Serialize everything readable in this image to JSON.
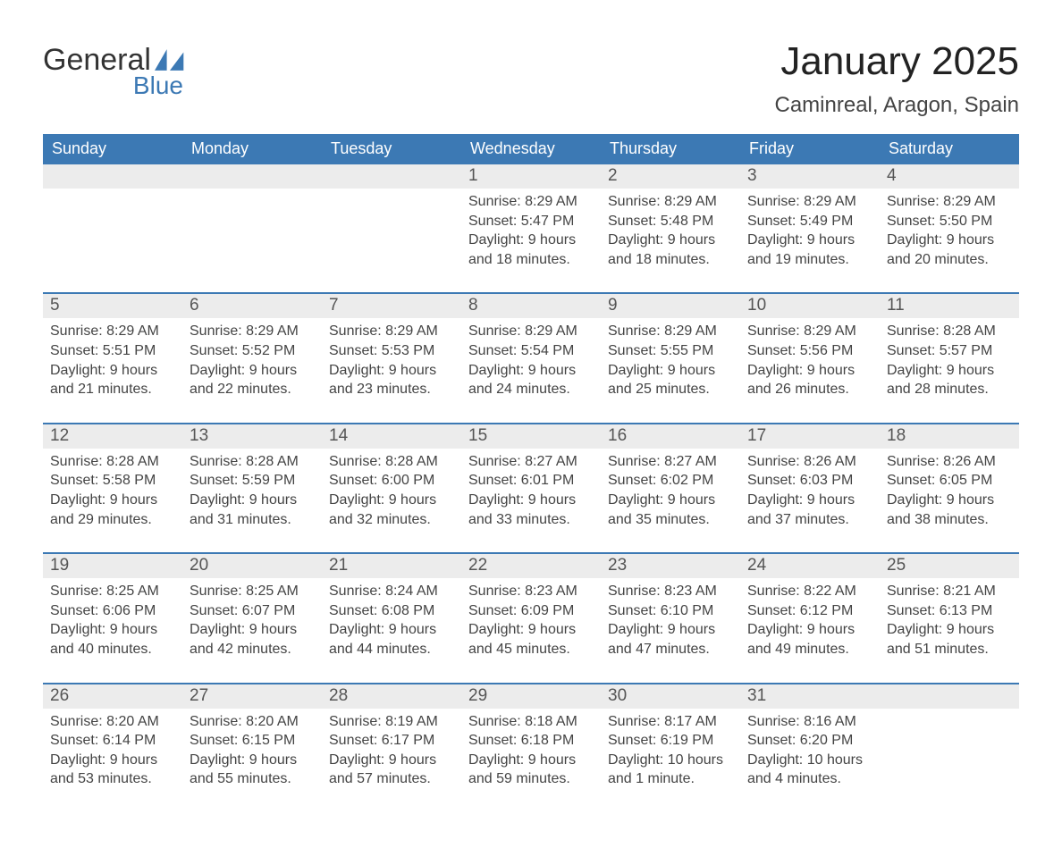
{
  "theme": {
    "accent": "#3c79b4",
    "row_bg": "#ececec",
    "row_border": "#3c79b4",
    "text": "#333333",
    "page_bg": "#ffffff",
    "header_text_color": "#ffffff"
  },
  "logo": {
    "word1": "General",
    "word2": "Blue"
  },
  "title": {
    "month": "January 2025",
    "location": "Caminreal, Aragon, Spain"
  },
  "days_of_week": [
    "Sunday",
    "Monday",
    "Tuesday",
    "Wednesday",
    "Thursday",
    "Friday",
    "Saturday"
  ],
  "weeks": [
    {
      "dates": [
        "",
        "",
        "",
        "1",
        "2",
        "3",
        "4"
      ],
      "days": [
        null,
        null,
        null,
        {
          "sunrise": "Sunrise: 8:29 AM",
          "sunset": "Sunset: 5:47 PM",
          "daylight1": "Daylight: 9 hours",
          "daylight2": "and 18 minutes."
        },
        {
          "sunrise": "Sunrise: 8:29 AM",
          "sunset": "Sunset: 5:48 PM",
          "daylight1": "Daylight: 9 hours",
          "daylight2": "and 18 minutes."
        },
        {
          "sunrise": "Sunrise: 8:29 AM",
          "sunset": "Sunset: 5:49 PM",
          "daylight1": "Daylight: 9 hours",
          "daylight2": "and 19 minutes."
        },
        {
          "sunrise": "Sunrise: 8:29 AM",
          "sunset": "Sunset: 5:50 PM",
          "daylight1": "Daylight: 9 hours",
          "daylight2": "and 20 minutes."
        }
      ]
    },
    {
      "dates": [
        "5",
        "6",
        "7",
        "8",
        "9",
        "10",
        "11"
      ],
      "days": [
        {
          "sunrise": "Sunrise: 8:29 AM",
          "sunset": "Sunset: 5:51 PM",
          "daylight1": "Daylight: 9 hours",
          "daylight2": "and 21 minutes."
        },
        {
          "sunrise": "Sunrise: 8:29 AM",
          "sunset": "Sunset: 5:52 PM",
          "daylight1": "Daylight: 9 hours",
          "daylight2": "and 22 minutes."
        },
        {
          "sunrise": "Sunrise: 8:29 AM",
          "sunset": "Sunset: 5:53 PM",
          "daylight1": "Daylight: 9 hours",
          "daylight2": "and 23 minutes."
        },
        {
          "sunrise": "Sunrise: 8:29 AM",
          "sunset": "Sunset: 5:54 PM",
          "daylight1": "Daylight: 9 hours",
          "daylight2": "and 24 minutes."
        },
        {
          "sunrise": "Sunrise: 8:29 AM",
          "sunset": "Sunset: 5:55 PM",
          "daylight1": "Daylight: 9 hours",
          "daylight2": "and 25 minutes."
        },
        {
          "sunrise": "Sunrise: 8:29 AM",
          "sunset": "Sunset: 5:56 PM",
          "daylight1": "Daylight: 9 hours",
          "daylight2": "and 26 minutes."
        },
        {
          "sunrise": "Sunrise: 8:28 AM",
          "sunset": "Sunset: 5:57 PM",
          "daylight1": "Daylight: 9 hours",
          "daylight2": "and 28 minutes."
        }
      ]
    },
    {
      "dates": [
        "12",
        "13",
        "14",
        "15",
        "16",
        "17",
        "18"
      ],
      "days": [
        {
          "sunrise": "Sunrise: 8:28 AM",
          "sunset": "Sunset: 5:58 PM",
          "daylight1": "Daylight: 9 hours",
          "daylight2": "and 29 minutes."
        },
        {
          "sunrise": "Sunrise: 8:28 AM",
          "sunset": "Sunset: 5:59 PM",
          "daylight1": "Daylight: 9 hours",
          "daylight2": "and 31 minutes."
        },
        {
          "sunrise": "Sunrise: 8:28 AM",
          "sunset": "Sunset: 6:00 PM",
          "daylight1": "Daylight: 9 hours",
          "daylight2": "and 32 minutes."
        },
        {
          "sunrise": "Sunrise: 8:27 AM",
          "sunset": "Sunset: 6:01 PM",
          "daylight1": "Daylight: 9 hours",
          "daylight2": "and 33 minutes."
        },
        {
          "sunrise": "Sunrise: 8:27 AM",
          "sunset": "Sunset: 6:02 PM",
          "daylight1": "Daylight: 9 hours",
          "daylight2": "and 35 minutes."
        },
        {
          "sunrise": "Sunrise: 8:26 AM",
          "sunset": "Sunset: 6:03 PM",
          "daylight1": "Daylight: 9 hours",
          "daylight2": "and 37 minutes."
        },
        {
          "sunrise": "Sunrise: 8:26 AM",
          "sunset": "Sunset: 6:05 PM",
          "daylight1": "Daylight: 9 hours",
          "daylight2": "and 38 minutes."
        }
      ]
    },
    {
      "dates": [
        "19",
        "20",
        "21",
        "22",
        "23",
        "24",
        "25"
      ],
      "days": [
        {
          "sunrise": "Sunrise: 8:25 AM",
          "sunset": "Sunset: 6:06 PM",
          "daylight1": "Daylight: 9 hours",
          "daylight2": "and 40 minutes."
        },
        {
          "sunrise": "Sunrise: 8:25 AM",
          "sunset": "Sunset: 6:07 PM",
          "daylight1": "Daylight: 9 hours",
          "daylight2": "and 42 minutes."
        },
        {
          "sunrise": "Sunrise: 8:24 AM",
          "sunset": "Sunset: 6:08 PM",
          "daylight1": "Daylight: 9 hours",
          "daylight2": "and 44 minutes."
        },
        {
          "sunrise": "Sunrise: 8:23 AM",
          "sunset": "Sunset: 6:09 PM",
          "daylight1": "Daylight: 9 hours",
          "daylight2": "and 45 minutes."
        },
        {
          "sunrise": "Sunrise: 8:23 AM",
          "sunset": "Sunset: 6:10 PM",
          "daylight1": "Daylight: 9 hours",
          "daylight2": "and 47 minutes."
        },
        {
          "sunrise": "Sunrise: 8:22 AM",
          "sunset": "Sunset: 6:12 PM",
          "daylight1": "Daylight: 9 hours",
          "daylight2": "and 49 minutes."
        },
        {
          "sunrise": "Sunrise: 8:21 AM",
          "sunset": "Sunset: 6:13 PM",
          "daylight1": "Daylight: 9 hours",
          "daylight2": "and 51 minutes."
        }
      ]
    },
    {
      "dates": [
        "26",
        "27",
        "28",
        "29",
        "30",
        "31",
        ""
      ],
      "days": [
        {
          "sunrise": "Sunrise: 8:20 AM",
          "sunset": "Sunset: 6:14 PM",
          "daylight1": "Daylight: 9 hours",
          "daylight2": "and 53 minutes."
        },
        {
          "sunrise": "Sunrise: 8:20 AM",
          "sunset": "Sunset: 6:15 PM",
          "daylight1": "Daylight: 9 hours",
          "daylight2": "and 55 minutes."
        },
        {
          "sunrise": "Sunrise: 8:19 AM",
          "sunset": "Sunset: 6:17 PM",
          "daylight1": "Daylight: 9 hours",
          "daylight2": "and 57 minutes."
        },
        {
          "sunrise": "Sunrise: 8:18 AM",
          "sunset": "Sunset: 6:18 PM",
          "daylight1": "Daylight: 9 hours",
          "daylight2": "and 59 minutes."
        },
        {
          "sunrise": "Sunrise: 8:17 AM",
          "sunset": "Sunset: 6:19 PM",
          "daylight1": "Daylight: 10 hours",
          "daylight2": "and 1 minute."
        },
        {
          "sunrise": "Sunrise: 8:16 AM",
          "sunset": "Sunset: 6:20 PM",
          "daylight1": "Daylight: 10 hours",
          "daylight2": "and 4 minutes."
        },
        null
      ]
    }
  ]
}
